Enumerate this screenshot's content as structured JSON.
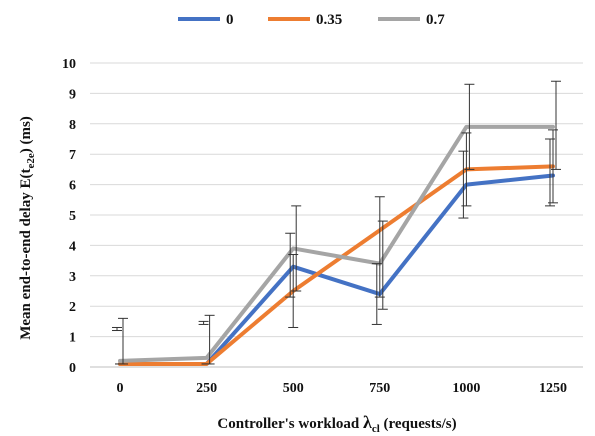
{
  "chart_data": {
    "type": "line",
    "xlabel": {
      "main": "Controller's workload  ",
      "symbol": "λ",
      "sub": "cl",
      "unit": " (requests/s)"
    },
    "ylabel": {
      "main": "Mean  end-to-end  delay  E(t",
      "sub": "e2e",
      "unit": ")  (ms)"
    },
    "categories": [
      "0",
      "250",
      "500",
      "750",
      "1000",
      "1250"
    ],
    "ylim": [
      0,
      10
    ],
    "yticks": [
      "0",
      "1",
      "2",
      "3",
      "4",
      "5",
      "6",
      "7",
      "8",
      "9",
      "10"
    ],
    "grid": "horizontal",
    "legend_position": "top",
    "series": [
      {
        "name": "0",
        "color": "#4472C4",
        "values": [
          0.1,
          0.1,
          3.3,
          2.4,
          6.0,
          6.3
        ],
        "err_low": [
          1.2,
          1.4,
          2.3,
          1.4,
          4.9,
          5.3
        ],
        "err_high": [
          1.3,
          1.5,
          4.4,
          3.4,
          7.1,
          7.5
        ]
      },
      {
        "name": "0.35",
        "color": "#ED7D31",
        "values": [
          0.1,
          0.1,
          2.5,
          4.5,
          6.5,
          6.6
        ],
        "err_low": [
          0.1,
          0.1,
          1.3,
          2.3,
          5.3,
          5.4
        ],
        "err_high": [
          0.1,
          0.1,
          3.7,
          5.6,
          7.7,
          7.8
        ]
      },
      {
        "name": "0.7",
        "color": "#A5A5A5",
        "values": [
          0.2,
          0.3,
          3.9,
          3.4,
          7.9,
          7.9
        ],
        "err_low": [
          0.1,
          0.1,
          2.5,
          1.9,
          6.5,
          6.5
        ],
        "err_high": [
          1.6,
          1.7,
          5.3,
          4.8,
          9.3,
          9.4
        ]
      }
    ]
  }
}
